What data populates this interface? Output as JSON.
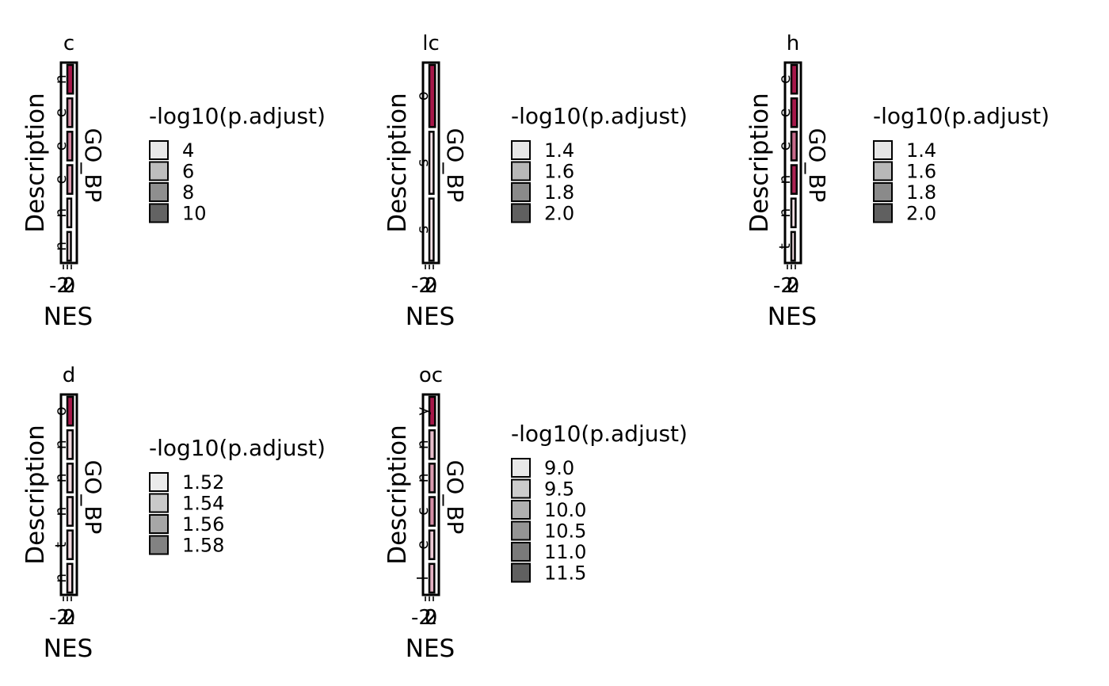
{
  "chart_data": [
    {
      "type": "bar",
      "orientation": "horizontal",
      "title": "c",
      "xlabel": "NES",
      "ylabel": "Description",
      "facet_label": "GO_BP",
      "x_ticks": [
        "-2",
        "0",
        "2"
      ],
      "y_tick_labels": [
        "n",
        "e",
        "e",
        "e",
        "n",
        "n"
      ],
      "values": [
        1.6,
        1.4,
        1.4,
        1.4,
        1.1,
        1.0
      ],
      "fill": [
        0.9,
        0.4,
        0.45,
        0.35,
        0.05,
        0.05
      ],
      "legend": {
        "title": "-log10(p.adjust)",
        "labels": [
          "4",
          "6",
          "8",
          "10"
        ],
        "colors": [
          "#e8e8e8",
          "#bdbdbd",
          "#8f8f8f",
          "#636363"
        ]
      }
    },
    {
      "type": "bar",
      "orientation": "horizontal",
      "title": "lc",
      "xlabel": "NES",
      "ylabel": "Description",
      "facet_label": "GO_BP",
      "x_ticks": [
        "-2",
        "0",
        "2"
      ],
      "y_tick_labels": [
        "o",
        "s",
        "s"
      ],
      "values": [
        1.6,
        1.2,
        1.2
      ],
      "fill": [
        0.9,
        0.05,
        0.05
      ],
      "legend": {
        "title": "-log10(p.adjust)",
        "labels": [
          "1.4",
          "1.6",
          "1.8",
          "2.0"
        ],
        "colors": [
          "#e6e6e6",
          "#b8b8b8",
          "#8a8a8a",
          "#606060"
        ]
      }
    },
    {
      "type": "bar",
      "orientation": "horizontal",
      "title": "h",
      "xlabel": "NES",
      "ylabel": "Description",
      "facet_label": "GO_BP",
      "x_ticks": [
        "-2",
        "0",
        "2"
      ],
      "y_tick_labels": [
        "e",
        "e",
        "e",
        "n",
        "n",
        "t"
      ],
      "values": [
        1.6,
        1.6,
        1.5,
        1.5,
        1.2,
        1.0
      ],
      "fill": [
        0.9,
        0.9,
        0.55,
        0.85,
        0.05,
        0.05
      ],
      "legend": {
        "title": "-log10(p.adjust)",
        "labels": [
          "1.4",
          "1.6",
          "1.8",
          "2.0"
        ],
        "colors": [
          "#e6e6e6",
          "#b8b8b8",
          "#8a8a8a",
          "#606060"
        ]
      }
    },
    {
      "type": "bar",
      "orientation": "horizontal",
      "title": "d",
      "xlabel": "NES",
      "ylabel": "Description",
      "facet_label": "GO_BP",
      "x_ticks": [
        "-2",
        "0",
        "2"
      ],
      "y_tick_labels": [
        "o",
        "n",
        "n",
        "n",
        "t",
        "n"
      ],
      "values": [
        1.6,
        1.5,
        1.5,
        1.5,
        1.5,
        1.4
      ],
      "fill": [
        0.9,
        0.08,
        0.08,
        0.08,
        0.08,
        0.08
      ],
      "legend": {
        "title": "-log10(p.adjust)",
        "labels": [
          "1.52",
          "1.54",
          "1.56",
          "1.58"
        ],
        "colors": [
          "#ebebeb",
          "#c9c9c9",
          "#a6a6a6",
          "#828282"
        ]
      }
    },
    {
      "type": "bar",
      "orientation": "horizontal",
      "title": "oc",
      "xlabel": "NES",
      "ylabel": "Description",
      "facet_label": "GO_BP",
      "x_ticks": [
        "-2",
        "0",
        "2"
      ],
      "y_tick_labels": [
        "y",
        "n",
        "n",
        "c",
        "e",
        "l"
      ],
      "values": [
        1.6,
        1.5,
        1.5,
        1.5,
        1.4,
        1.4
      ],
      "fill": [
        0.9,
        0.2,
        0.35,
        0.4,
        0.15,
        0.25
      ],
      "legend": {
        "title": "-log10(p.adjust)",
        "labels": [
          "9.0",
          "9.5",
          "10.0",
          "10.5",
          "11.0",
          "11.5"
        ],
        "colors": [
          "#e8e8e8",
          "#cccccc",
          "#b0b0b0",
          "#949494",
          "#7a7a7a",
          "#606060"
        ]
      }
    }
  ]
}
